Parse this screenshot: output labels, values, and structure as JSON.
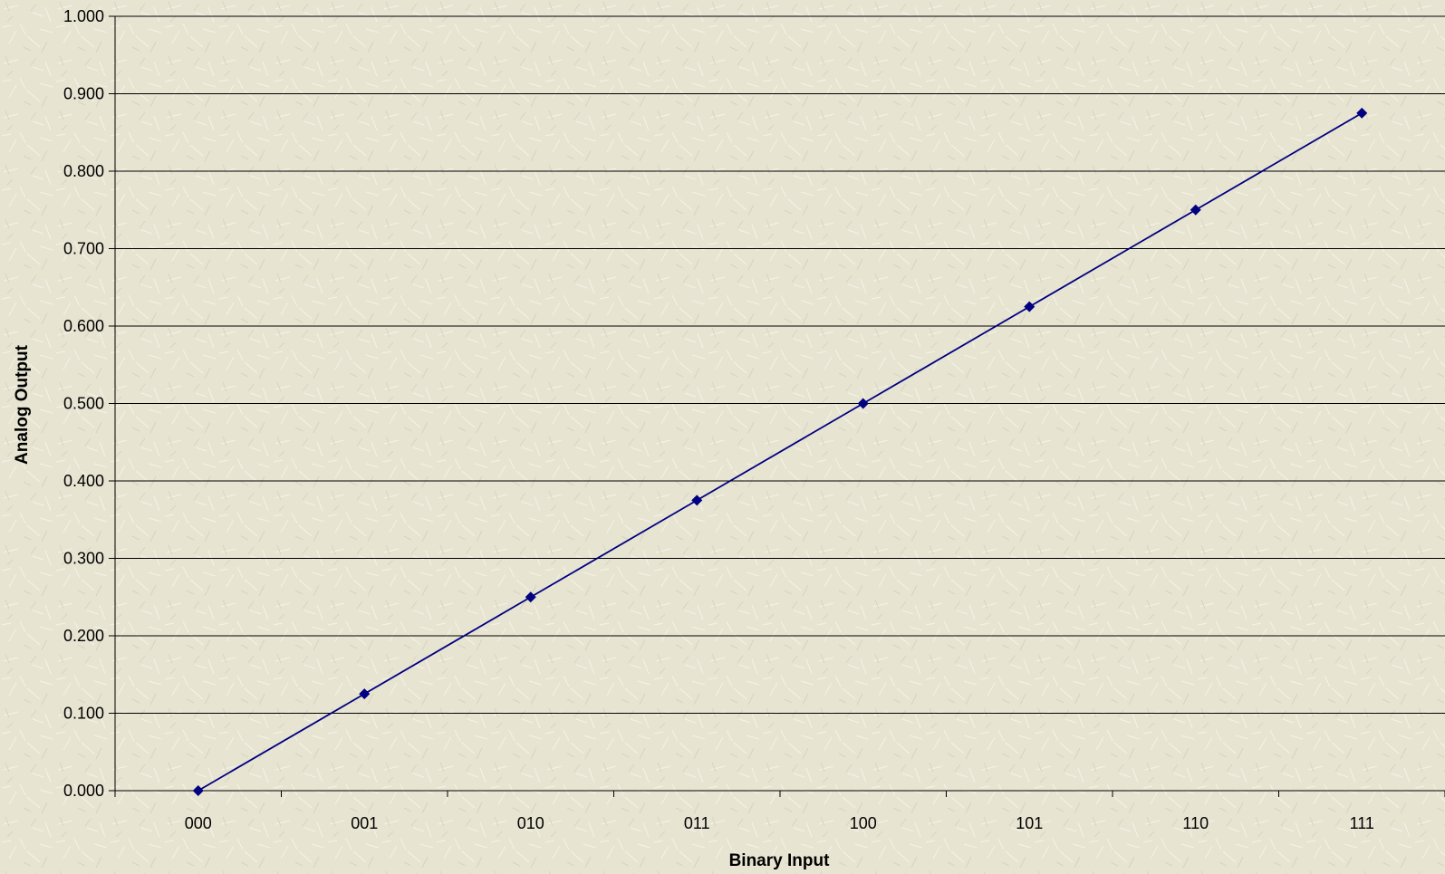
{
  "chart_data": {
    "type": "line",
    "title": "",
    "xlabel": "Binary Input",
    "ylabel": "Analog Output",
    "categories": [
      "000",
      "001",
      "010",
      "011",
      "100",
      "101",
      "110",
      "111"
    ],
    "series": [
      {
        "values": [
          0.0,
          0.125,
          0.25,
          0.375,
          0.5,
          0.625,
          0.75,
          0.875
        ]
      }
    ],
    "ylim": [
      0,
      1
    ],
    "ytick_labels": [
      "0.000",
      "0.100",
      "0.200",
      "0.300",
      "0.400",
      "0.500",
      "0.600",
      "0.700",
      "0.800",
      "0.900",
      "1.000"
    ],
    "grid": true,
    "legend": "none",
    "colors": {
      "series": "#000080",
      "background": "#e7e4d2",
      "grid": "#000000"
    }
  }
}
